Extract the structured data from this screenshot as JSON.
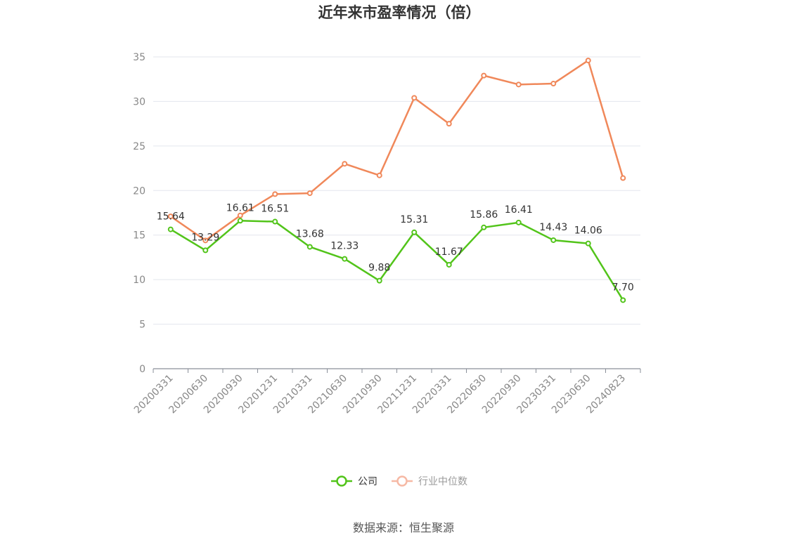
{
  "chart_data": {
    "type": "line",
    "title": "近年来市盈率情况（倍）",
    "x": [
      "20200331",
      "20200630",
      "20200930",
      "20201231",
      "20210331",
      "20210630",
      "20210930",
      "20211231",
      "20220331",
      "20220630",
      "20220930",
      "20230331",
      "20230630",
      "20240823"
    ],
    "series": [
      {
        "name": "公司",
        "color": "#52c41a",
        "values": [
          15.64,
          13.29,
          16.61,
          16.51,
          13.68,
          12.33,
          9.88,
          15.31,
          11.67,
          15.86,
          16.41,
          14.43,
          14.06,
          7.7
        ],
        "labels": [
          "15.64",
          "13.29",
          "16.61",
          "16.51",
          "13.68",
          "12.33",
          "9.88",
          "15.31",
          "11.67",
          "15.86",
          "16.41",
          "14.43",
          "14.06",
          "7.70"
        ]
      },
      {
        "name": "行业中位数",
        "color": "#f0885a",
        "values": [
          17.1,
          14.4,
          17.2,
          19.6,
          19.7,
          23.0,
          21.7,
          30.4,
          27.5,
          32.9,
          31.9,
          32.0,
          34.6,
          21.4
        ]
      }
    ],
    "yticks": [
      "0",
      "5",
      "10",
      "15",
      "20",
      "25",
      "30",
      "35"
    ],
    "ylim": [
      0,
      35
    ],
    "grid": true,
    "legend_position": "bottom"
  },
  "source_text": "数据来源：恒生聚源"
}
